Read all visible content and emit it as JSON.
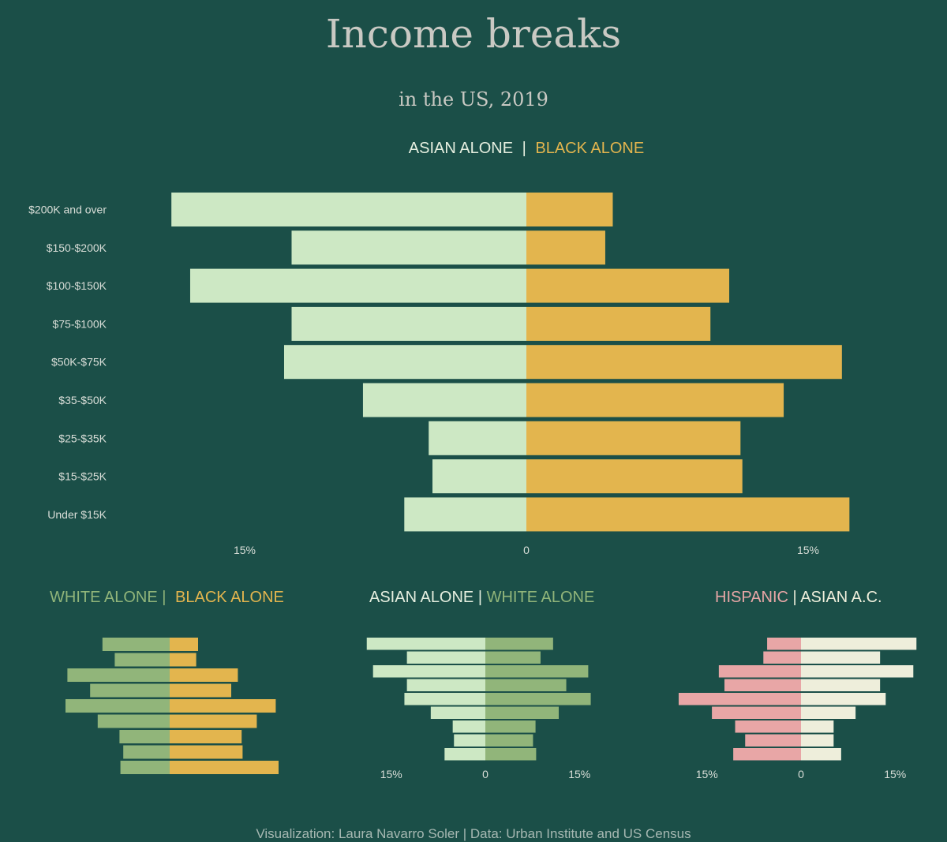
{
  "title": "Income breaks",
  "subtitle": "in the US, 2019",
  "footer": "Visualization: Laura Navarro Soler | Data: Urban Institute and US Census",
  "colors": {
    "background": "#1b4f48",
    "asian": "#cde8c4",
    "black": "#e3b54e",
    "white": "#91b57a",
    "hispanic": "#e8a6a6",
    "asian_ac": "#eeeedb"
  },
  "headings": {
    "main": {
      "left": "ASIAN ALONE",
      "sep": "|",
      "right": "BLACK ALONE"
    },
    "small1": {
      "left": "WHITE ALONE",
      "sep": "|",
      "right": "BLACK ALONE"
    },
    "small2": {
      "left": "ASIAN ALONE",
      "sep": "|",
      "right": "WHITE ALONE"
    },
    "small3": {
      "left": "HISPANIC",
      "sep": "|",
      "right": "ASIAN A.C."
    }
  },
  "chart_data": [
    {
      "type": "bar",
      "orientation": "diverging-horizontal",
      "categories": [
        "$200K and over",
        "$150-$200K",
        "$100-$150K",
        "$75-$100K",
        "$50K-$75K",
        "$35-$50K",
        "$25-$35K",
        "$15-$25K",
        "Under $15K"
      ],
      "series": [
        {
          "name": "ASIAN ALONE",
          "side": "left",
          "values": [
            18.9,
            12.5,
            17.9,
            12.5,
            12.9,
            8.7,
            5.2,
            5.0,
            6.5
          ]
        },
        {
          "name": "BLACK ALONE",
          "side": "right",
          "values": [
            4.6,
            4.2,
            10.8,
            9.8,
            16.8,
            13.7,
            11.4,
            11.5,
            17.2
          ]
        }
      ],
      "xlim": [
        -20,
        20
      ],
      "xticks": [
        {
          "value": -15,
          "label": "15%"
        },
        {
          "value": 0,
          "label": "0"
        },
        {
          "value": 15,
          "label": "15%"
        }
      ]
    },
    {
      "type": "bar",
      "orientation": "diverging-horizontal",
      "categories": [
        "$200K and over",
        "$150-$200K",
        "$100-$150K",
        "$75-$100K",
        "$50K-$75K",
        "$35-$50K",
        "$25-$35K",
        "$15-$25K",
        "Under $15K"
      ],
      "series": [
        {
          "name": "WHITE ALONE",
          "side": "left",
          "values": [
            7.1,
            5.8,
            10.8,
            8.4,
            11.0,
            7.6,
            5.3,
            4.9,
            5.2
          ]
        },
        {
          "name": "BLACK ALONE",
          "side": "right",
          "values": [
            3.0,
            2.8,
            7.2,
            6.5,
            11.2,
            9.2,
            7.6,
            7.7,
            11.5
          ]
        }
      ],
      "xlim": [
        -18,
        18
      ]
    },
    {
      "type": "bar",
      "orientation": "diverging-horizontal",
      "categories": [
        "$200K and over",
        "$150-$200K",
        "$100-$150K",
        "$75-$100K",
        "$50K-$75K",
        "$35-$50K",
        "$25-$35K",
        "$15-$25K",
        "Under $15K"
      ],
      "series": [
        {
          "name": "ASIAN ALONE",
          "side": "left",
          "values": [
            18.9,
            12.5,
            17.9,
            12.5,
            12.9,
            8.7,
            5.2,
            5.0,
            6.5
          ]
        },
        {
          "name": "WHITE ALONE",
          "side": "right",
          "values": [
            10.8,
            8.8,
            16.4,
            12.9,
            16.8,
            11.7,
            8.0,
            7.6,
            8.1
          ]
        }
      ],
      "xlim": [
        -20,
        20
      ],
      "xticks": [
        {
          "value": -15,
          "label": "15%"
        },
        {
          "value": 0,
          "label": "0"
        },
        {
          "value": 15,
          "label": "15%"
        }
      ]
    },
    {
      "type": "bar",
      "orientation": "diverging-horizontal",
      "categories": [
        "$200K and over",
        "$150-$200K",
        "$100-$150K",
        "$75-$100K",
        "$50K-$75K",
        "$35-$50K",
        "$25-$35K",
        "$15-$25K",
        "Under $15K"
      ],
      "series": [
        {
          "name": "HISPANIC",
          "side": "left",
          "values": [
            5.4,
            6.0,
            13.1,
            12.2,
            19.5,
            14.2,
            10.5,
            8.9,
            10.8
          ]
        },
        {
          "name": "ASIAN A.C.",
          "side": "right",
          "values": [
            18.4,
            12.6,
            17.9,
            12.6,
            13.5,
            8.7,
            5.2,
            5.2,
            6.4
          ]
        }
      ],
      "xlim": [
        -20,
        20
      ],
      "xticks": [
        {
          "value": -15,
          "label": "15%"
        },
        {
          "value": 0,
          "label": "0"
        },
        {
          "value": 15,
          "label": "15%"
        }
      ]
    }
  ]
}
